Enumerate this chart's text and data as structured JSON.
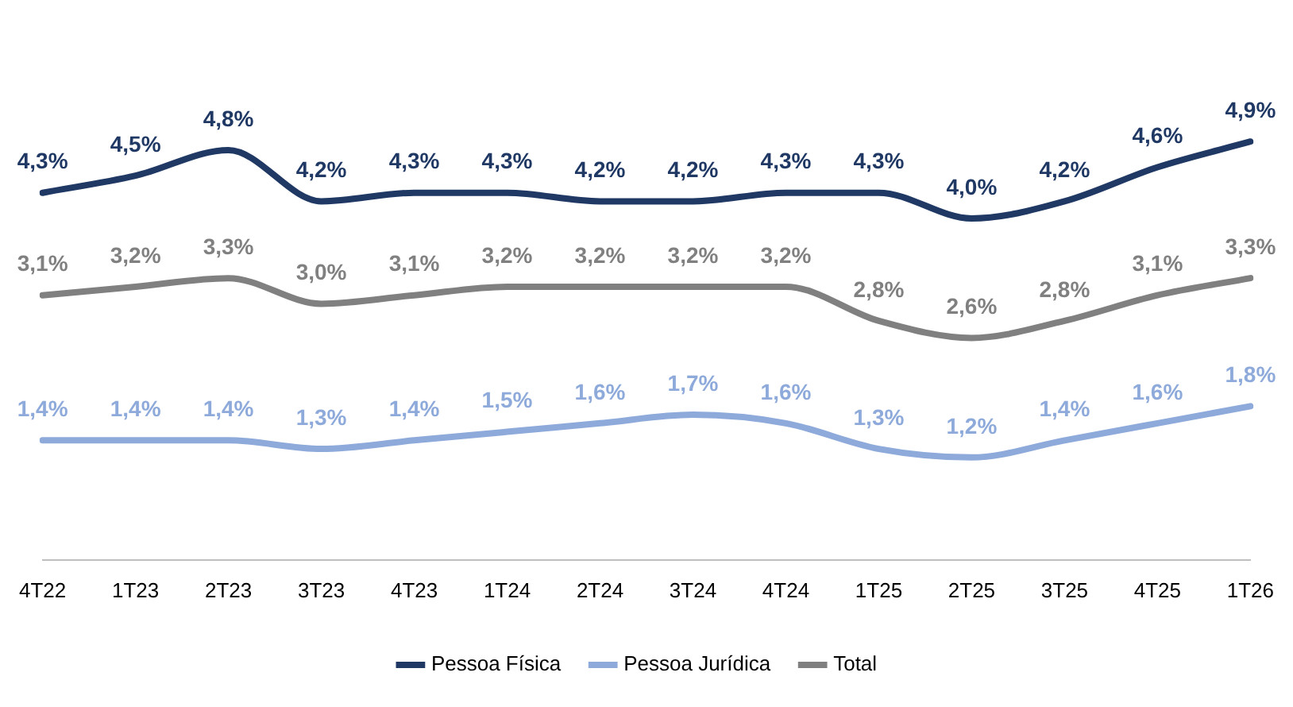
{
  "chart_data": {
    "type": "line",
    "categories": [
      "4T22",
      "1T23",
      "2T23",
      "3T23",
      "4T23",
      "1T24",
      "2T24",
      "3T24",
      "4T24",
      "1T25",
      "2T25",
      "3T25",
      "4T25",
      "1T26"
    ],
    "series": [
      {
        "name": "Pessoa Física",
        "color": "#1f3864",
        "values": [
          4.3,
          4.5,
          4.8,
          4.2,
          4.3,
          4.3,
          4.2,
          4.2,
          4.3,
          4.3,
          4.0,
          4.2,
          4.6,
          4.9
        ],
        "value_labels": [
          "4,3%",
          "4,5%",
          "4,8%",
          "4,2%",
          "4,3%",
          "4,3%",
          "4,2%",
          "4,2%",
          "4,3%",
          "4,3%",
          "4,0%",
          "4,2%",
          "4,6%",
          "4,9%"
        ]
      },
      {
        "name": "Pessoa Jurídica",
        "color": "#8eaadb",
        "values": [
          1.4,
          1.4,
          1.4,
          1.3,
          1.4,
          1.5,
          1.6,
          1.7,
          1.6,
          1.3,
          1.2,
          1.4,
          1.6,
          1.8
        ],
        "value_labels": [
          "1,4%",
          "1,4%",
          "1,4%",
          "1,3%",
          "1,4%",
          "1,5%",
          "1,6%",
          "1,7%",
          "1,6%",
          "1,3%",
          "1,2%",
          "1,4%",
          "1,6%",
          "1,8%"
        ]
      },
      {
        "name": "Total",
        "color": "#808080",
        "values": [
          3.1,
          3.2,
          3.3,
          3.0,
          3.1,
          3.2,
          3.2,
          3.2,
          3.2,
          2.8,
          2.6,
          2.8,
          3.1,
          3.3
        ],
        "value_labels": [
          "3,1%",
          "3,2%",
          "3,3%",
          "3,0%",
          "3,1%",
          "3,2%",
          "3,2%",
          "3,2%",
          "3,2%",
          "2,8%",
          "2,6%",
          "2,8%",
          "3,1%",
          "3,3%"
        ]
      }
    ],
    "legend": "bottom",
    "grid": false,
    "marker": "none",
    "line_style": "solid"
  }
}
